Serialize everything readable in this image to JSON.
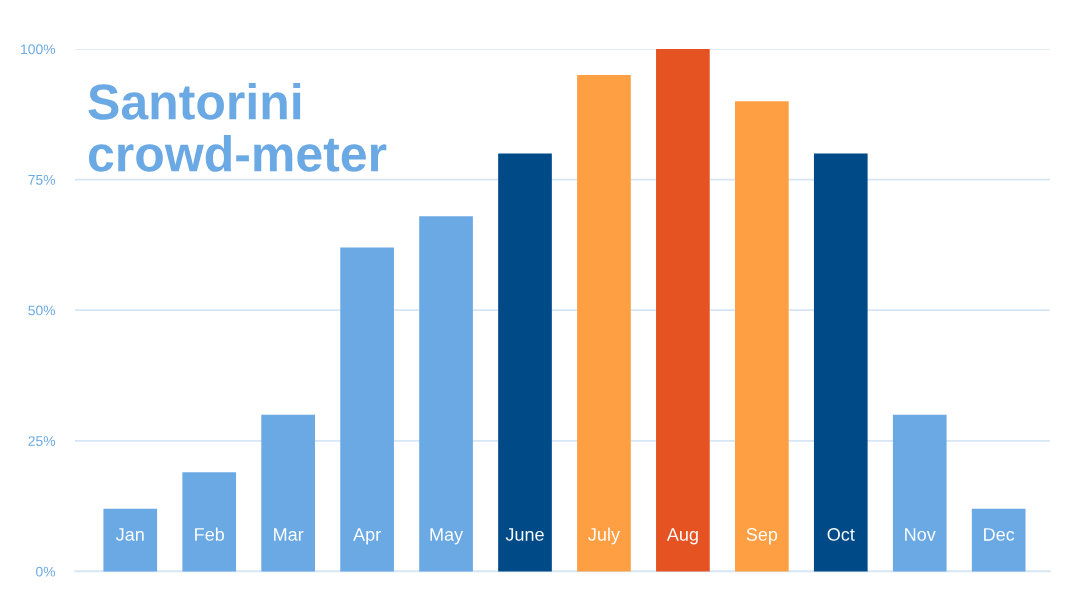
{
  "chart_data": {
    "type": "bar",
    "title": "Santorini\ncrowd-meter",
    "categories": [
      "Jan",
      "Feb",
      "Mar",
      "Apr",
      "May",
      "June",
      "July",
      "Aug",
      "Sep",
      "Oct",
      "Nov",
      "Dec"
    ],
    "values": [
      12,
      19,
      30,
      62,
      68,
      80,
      95,
      100,
      90,
      80,
      30,
      12
    ],
    "colors": [
      "#6aa9e3",
      "#6aa9e3",
      "#6aa9e3",
      "#6aa9e3",
      "#6aa9e3",
      "#004a87",
      "#ff9f43",
      "#e55322",
      "#ff9f43",
      "#004a87",
      "#6aa9e3",
      "#6aa9e3"
    ],
    "ylim": [
      0,
      100
    ],
    "yticks": [
      {
        "value": 0,
        "label": "0%"
      },
      {
        "value": 25,
        "label": "25%"
      },
      {
        "value": 50,
        "label": "50%"
      },
      {
        "value": 75,
        "label": "75%"
      },
      {
        "value": 100,
        "label": "100%"
      }
    ],
    "grid": "y"
  }
}
